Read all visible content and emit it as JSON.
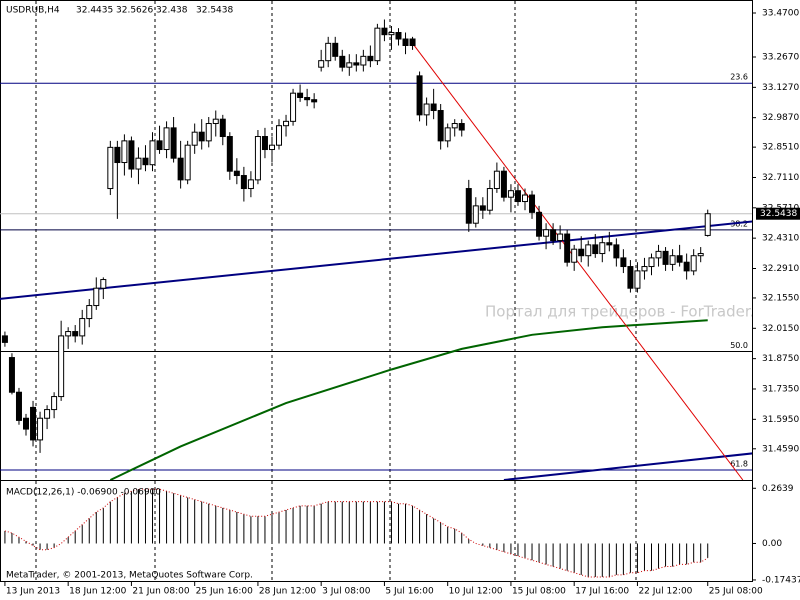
{
  "chart_data": {
    "type": "candlestick",
    "title": "USDRUB,H4",
    "color_up": "#ffffff",
    "color_down": "#000000",
    "ohlc": [
      [
        31.98,
        32.0,
        31.93,
        31.95
      ],
      [
        31.88,
        31.9,
        31.71,
        31.72
      ],
      [
        31.72,
        31.74,
        31.57,
        31.59
      ],
      [
        31.6,
        31.62,
        31.52,
        31.55
      ],
      [
        31.65,
        31.68,
        31.47,
        31.5
      ],
      [
        31.5,
        31.63,
        31.44,
        31.6
      ],
      [
        31.6,
        31.66,
        31.55,
        31.64
      ],
      [
        31.64,
        31.72,
        31.6,
        31.7
      ],
      [
        31.7,
        32.05,
        31.68,
        31.98
      ],
      [
        31.98,
        32.02,
        31.92,
        32.0
      ],
      [
        32.0,
        32.03,
        31.95,
        31.98
      ],
      [
        31.98,
        32.1,
        31.94,
        32.06
      ],
      [
        32.06,
        32.15,
        32.02,
        32.12
      ],
      [
        32.12,
        32.25,
        32.1,
        32.2
      ],
      [
        32.2,
        32.25,
        32.15,
        32.24
      ],
      [
        32.66,
        32.88,
        32.63,
        32.85
      ],
      [
        32.85,
        32.88,
        32.52,
        32.78
      ],
      [
        32.78,
        32.91,
        32.72,
        32.88
      ],
      [
        32.88,
        32.9,
        32.71,
        32.75
      ],
      [
        32.75,
        32.85,
        32.68,
        32.8
      ],
      [
        32.8,
        32.86,
        32.74,
        32.77
      ],
      [
        32.77,
        32.92,
        32.74,
        32.88
      ],
      [
        32.88,
        32.95,
        32.82,
        32.84
      ],
      [
        32.84,
        32.97,
        32.8,
        32.94
      ],
      [
        32.94,
        32.99,
        32.78,
        32.8
      ],
      [
        32.8,
        32.88,
        32.66,
        32.7
      ],
      [
        32.7,
        32.88,
        32.68,
        32.86
      ],
      [
        32.86,
        32.96,
        32.82,
        32.92
      ],
      [
        32.92,
        32.98,
        32.84,
        32.88
      ],
      [
        32.88,
        32.99,
        32.85,
        32.96
      ],
      [
        32.96,
        33.02,
        32.9,
        32.98
      ],
      [
        32.98,
        33.0,
        32.86,
        32.9
      ],
      [
        32.9,
        32.92,
        32.7,
        32.74
      ],
      [
        32.74,
        32.8,
        32.68,
        32.72
      ],
      [
        32.72,
        32.76,
        32.6,
        32.66
      ],
      [
        32.66,
        32.74,
        32.62,
        32.7
      ],
      [
        32.7,
        32.93,
        32.68,
        32.9
      ],
      [
        32.9,
        32.94,
        32.8,
        32.84
      ],
      [
        32.84,
        32.9,
        32.78,
        32.86
      ],
      [
        32.86,
        32.98,
        32.84,
        32.95
      ],
      [
        32.95,
        33.0,
        32.9,
        32.97
      ],
      [
        32.97,
        33.12,
        32.95,
        33.1
      ],
      [
        33.1,
        33.14,
        33.06,
        33.08
      ],
      [
        33.08,
        33.12,
        33.04,
        33.07
      ],
      [
        33.07,
        33.1,
        33.03,
        33.06
      ],
      [
        33.22,
        33.3,
        33.2,
        33.25
      ],
      [
        33.25,
        33.36,
        33.22,
        33.33
      ],
      [
        33.33,
        33.36,
        33.25,
        33.27
      ],
      [
        33.27,
        33.3,
        33.2,
        33.22
      ],
      [
        33.22,
        33.28,
        33.18,
        33.24
      ],
      [
        33.24,
        33.28,
        33.2,
        33.23
      ],
      [
        33.23,
        33.3,
        33.2,
        33.27
      ],
      [
        33.27,
        33.32,
        33.22,
        33.25
      ],
      [
        33.25,
        33.42,
        33.23,
        33.4
      ],
      [
        33.4,
        33.44,
        33.34,
        33.37
      ],
      [
        33.37,
        33.41,
        33.3,
        33.38
      ],
      [
        33.38,
        33.4,
        33.32,
        33.35
      ],
      [
        33.35,
        33.38,
        33.28,
        33.32
      ],
      [
        33.35,
        33.36,
        33.3,
        33.32
      ],
      [
        33.18,
        33.2,
        32.97,
        33.0
      ],
      [
        33.0,
        33.08,
        32.95,
        33.05
      ],
      [
        33.05,
        33.12,
        32.98,
        33.02
      ],
      [
        33.02,
        33.05,
        32.84,
        32.88
      ],
      [
        32.88,
        32.96,
        32.85,
        32.94
      ],
      [
        32.94,
        32.98,
        32.9,
        32.96
      ],
      [
        32.96,
        32.98,
        32.9,
        32.93
      ],
      [
        32.66,
        32.7,
        32.46,
        32.5
      ],
      [
        32.5,
        32.62,
        32.48,
        32.58
      ],
      [
        32.58,
        32.62,
        32.52,
        32.56
      ],
      [
        32.56,
        32.7,
        32.54,
        32.66
      ],
      [
        32.66,
        32.78,
        32.64,
        32.74
      ],
      [
        32.74,
        32.76,
        32.6,
        32.62
      ],
      [
        32.62,
        32.68,
        32.55,
        32.65
      ],
      [
        32.65,
        32.68,
        32.58,
        32.6
      ],
      [
        32.6,
        32.66,
        32.56,
        32.63
      ],
      [
        32.63,
        32.65,
        32.52,
        32.55
      ],
      [
        32.55,
        32.58,
        32.42,
        32.44
      ],
      [
        32.44,
        32.5,
        32.38,
        32.47
      ],
      [
        32.47,
        32.5,
        32.4,
        32.42
      ],
      [
        32.42,
        32.49,
        32.38,
        32.45
      ],
      [
        32.45,
        32.47,
        32.3,
        32.32
      ],
      [
        32.32,
        32.4,
        32.28,
        32.38
      ],
      [
        32.38,
        32.44,
        32.32,
        32.35
      ],
      [
        32.35,
        32.42,
        32.3,
        32.4
      ],
      [
        32.4,
        32.45,
        32.34,
        32.36
      ],
      [
        32.36,
        32.44,
        32.32,
        32.41
      ],
      [
        32.41,
        32.46,
        32.37,
        32.4
      ],
      [
        32.4,
        32.43,
        32.3,
        32.34
      ],
      [
        32.34,
        32.38,
        32.27,
        32.3
      ],
      [
        32.3,
        32.33,
        32.18,
        32.2
      ],
      [
        32.2,
        32.32,
        32.18,
        32.28
      ],
      [
        32.28,
        32.34,
        32.24,
        32.3
      ],
      [
        32.3,
        32.36,
        32.26,
        32.34
      ],
      [
        32.34,
        32.4,
        32.3,
        32.37
      ],
      [
        32.37,
        32.39,
        32.28,
        32.31
      ],
      [
        32.31,
        32.38,
        32.28,
        32.35
      ],
      [
        32.35,
        32.4,
        32.3,
        32.32
      ],
      [
        32.32,
        32.36,
        32.24,
        32.28
      ],
      [
        32.28,
        32.38,
        32.26,
        32.35
      ],
      [
        32.35,
        32.39,
        32.32,
        32.36
      ],
      [
        32.4435,
        32.5626,
        32.438,
        32.5438
      ]
    ],
    "xlim": [
      -0.7,
      106.3
    ],
    "ylim": [
      31.315,
      33.53
    ],
    "yticks": [
      {
        "value": 33.47,
        "label": "33.4700"
      },
      {
        "value": 33.267,
        "label": "33.2670"
      },
      {
        "value": 33.127,
        "label": "33.1270"
      },
      {
        "value": 32.987,
        "label": "32.9870"
      },
      {
        "value": 32.851,
        "label": "32.8510"
      },
      {
        "value": 32.711,
        "label": "32.7110"
      },
      {
        "value": 32.571,
        "label": "32.5710"
      },
      {
        "value": 32.431,
        "label": "32.4310"
      },
      {
        "value": 32.291,
        "label": "32.2910"
      },
      {
        "value": 32.155,
        "label": "32.1550"
      },
      {
        "value": 32.015,
        "label": "32.0150"
      },
      {
        "value": 31.875,
        "label": "31.8750"
      },
      {
        "value": 31.735,
        "label": "31.7350"
      },
      {
        "value": 31.595,
        "label": "31.5950"
      },
      {
        "value": 31.459,
        "label": "31.4590"
      }
    ],
    "xticks": [
      {
        "value": 0,
        "label": "13 Jun 2013"
      },
      {
        "value": 9,
        "label": "18 Jun 12:00"
      },
      {
        "value": 18,
        "label": "21 Jun 08:00"
      },
      {
        "value": 27,
        "label": "25 Jun 16:00"
      },
      {
        "value": 36,
        "label": "28 Jun 12:00"
      },
      {
        "value": 45,
        "label": "3 Jul 08:00"
      },
      {
        "value": 54,
        "label": "5 Jul 16:00"
      },
      {
        "value": 63,
        "label": "10 Jul 12:00"
      },
      {
        "value": 72,
        "label": "15 Jul 08:00"
      },
      {
        "value": 81,
        "label": "17 Jul 16:00"
      },
      {
        "value": 90,
        "label": "22 Jul 12:00"
      },
      {
        "value": 100,
        "label": "25 Jul 08:00"
      }
    ],
    "moving_average": {
      "color": "#006400",
      "x": [
        15,
        25,
        40,
        55,
        65,
        75,
        85,
        100
      ],
      "values": [
        31.315,
        31.47,
        31.67,
        31.825,
        31.92,
        31.985,
        32.02,
        32.052
      ]
    },
    "trendlines": [
      {
        "color": "#000080",
        "from": [
          -1,
          32.15
        ],
        "to": [
          107,
          32.51
        ]
      },
      {
        "color": "#000080",
        "from": [
          71,
          31.315
        ],
        "to": [
          107,
          31.44
        ]
      },
      {
        "color": "#e00000",
        "from": [
          58,
          33.33
        ],
        "to": [
          105,
          31.315
        ]
      }
    ],
    "fib_levels": [
      {
        "label": "23.6",
        "price": 33.146,
        "color": "#000080"
      },
      {
        "label": "38.2",
        "price": 32.469,
        "color": "#000040"
      },
      {
        "label": "50.0",
        "price": 31.908,
        "color": "#000000"
      },
      {
        "label": "61.8",
        "price": 31.361,
        "color": "#000080"
      }
    ],
    "watermark": "Портал для трейдеров - ForTrader.ru",
    "macd": {
      "label": "MACD(12,26,1) -0.06900 -0.06900",
      "color": "#000000",
      "signal_color": "#cc0000",
      "ylim": [
        -0.1842,
        0.2987
      ],
      "yticks": [
        {
          "value": 0.2639,
          "label": "0.2639"
        },
        {
          "value": 0,
          "label": "0.00"
        },
        {
          "value": -0.17437,
          "label": "-0.17437"
        }
      ],
      "values": [
        0.06,
        0.05,
        0.03,
        0.01,
        -0.01,
        -0.03,
        -0.03,
        -0.02,
        0.0,
        0.03,
        0.06,
        0.09,
        0.12,
        0.15,
        0.17,
        0.2,
        0.22,
        0.24,
        0.25,
        0.26,
        0.26,
        0.26,
        0.26,
        0.25,
        0.24,
        0.23,
        0.22,
        0.21,
        0.2,
        0.19,
        0.18,
        0.17,
        0.16,
        0.15,
        0.14,
        0.13,
        0.13,
        0.13,
        0.14,
        0.15,
        0.16,
        0.17,
        0.18,
        0.18,
        0.18,
        0.19,
        0.2,
        0.2,
        0.2,
        0.2,
        0.2,
        0.2,
        0.2,
        0.2,
        0.2,
        0.2,
        0.19,
        0.19,
        0.18,
        0.16,
        0.14,
        0.12,
        0.1,
        0.08,
        0.07,
        0.05,
        0.02,
        0.0,
        -0.01,
        -0.02,
        -0.03,
        -0.04,
        -0.05,
        -0.06,
        -0.07,
        -0.08,
        -0.09,
        -0.1,
        -0.11,
        -0.12,
        -0.13,
        -0.14,
        -0.15,
        -0.16,
        -0.16,
        -0.16,
        -0.16,
        -0.15,
        -0.15,
        -0.14,
        -0.14,
        -0.13,
        -0.13,
        -0.12,
        -0.11,
        -0.11,
        -0.1,
        -0.1,
        -0.09,
        -0.09,
        -0.069
      ]
    },
    "footer": "MetaTrader, © 2001-2013, MetaQuotes Software Corp."
  }
}
